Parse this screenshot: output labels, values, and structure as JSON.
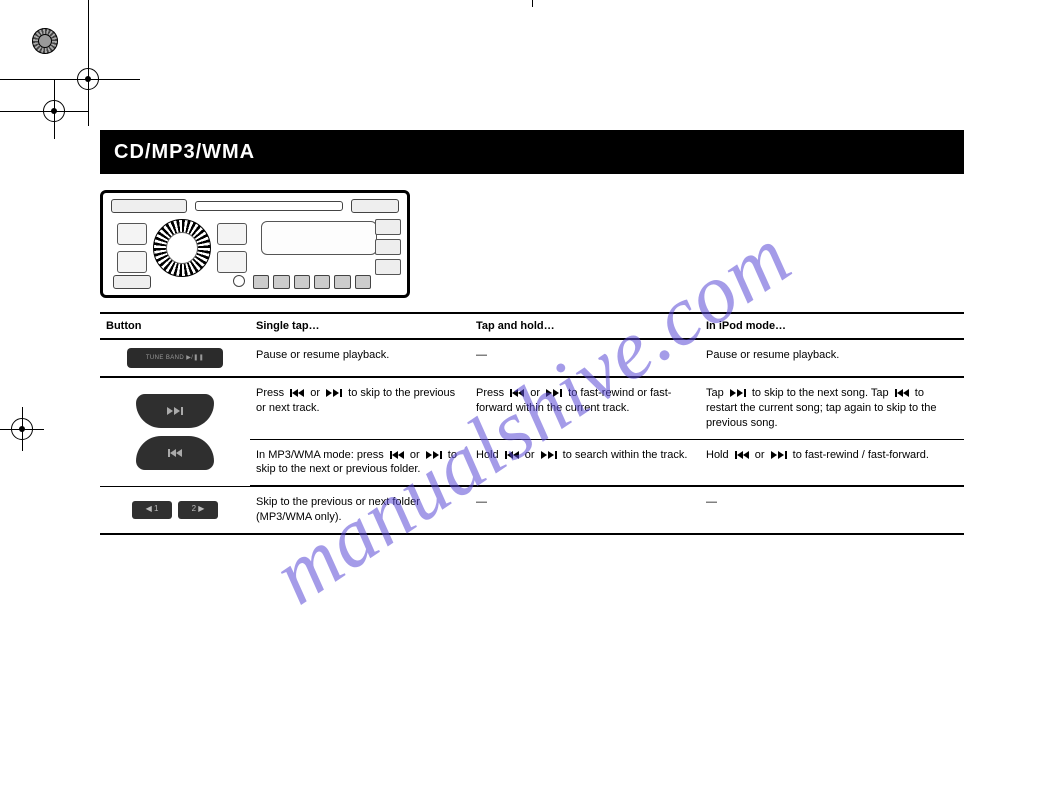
{
  "title_bar": "CD/MP3/WMA",
  "watermark_text": "manualshive.com",
  "columns": {
    "button": "Button",
    "tap": "Single tap…",
    "hold": "Tap and hold…",
    "mode": "In iPod mode…"
  },
  "rows": {
    "band": {
      "btn_label": "TUNE  BAND  ▶/❚❚",
      "tap": "Pause or resume playback.",
      "hold": "—",
      "mode": "Pause or resume playback."
    },
    "seek_tap": {
      "tap_pre": "Press ",
      "tap_mid": " or ",
      "tap_post": " to skip to the previous or next track.",
      "hold_pre": "Press ",
      "hold_mid": " or ",
      "hold_post": " to fast-rewind or fast-forward within the current track.",
      "mode_pre": "Tap ",
      "mode_mid": " to skip to the next song. Tap ",
      "mode_post": " to restart the current song; tap again to skip to the previous song."
    },
    "seek_hold": {
      "tap_pre": "In MP3/WMA mode: press ",
      "tap_mid": " or ",
      "tap_post": " to skip to the next or previous folder.",
      "hold_pre": "Hold ",
      "hold_mid": " or ",
      "hold_post": " to search within the track.",
      "mode_pre": "Hold ",
      "mode_mid": " or ",
      "mode_post": " to fast-rewind / fast-forward."
    },
    "preset": {
      "btn_left": "◀ 1",
      "btn_right": "2 ▶",
      "tap": "Skip to the previous or next folder (MP3/WMA only).",
      "hold": "—",
      "mode": "—"
    }
  },
  "icons_tooltip": {
    "prev": "skip-back",
    "next": "skip-forward"
  }
}
